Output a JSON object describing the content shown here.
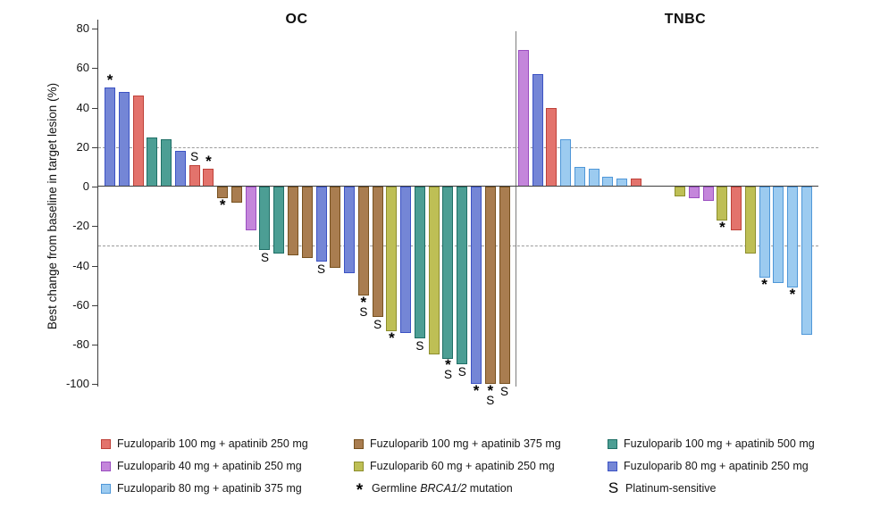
{
  "chart_data": {
    "type": "bar",
    "subtype": "waterfall",
    "ylabel": "Best change from baseline in target lesion (%)",
    "ylim": [
      -100,
      80
    ],
    "yticks": [
      80,
      60,
      40,
      20,
      0,
      -20,
      -40,
      -60,
      -80,
      -100
    ],
    "reference_lines": {
      "upper": 20,
      "lower": -30,
      "style": "dashed"
    },
    "grid": "off",
    "legend_position": "bottom",
    "groups": {
      "f100a250": {
        "label": "Fuzuloparib 100 mg + apatinib 250 mg",
        "fill": "#E3736C",
        "stroke": "#BE4139"
      },
      "f40a250": {
        "label": "Fuzuloparib 40 mg + apatinib 250 mg",
        "fill": "#C486DB",
        "stroke": "#9A4EC0"
      },
      "f80a375": {
        "label": "Fuzuloparib 80 mg + apatinib 375 mg",
        "fill": "#9CCBF0",
        "stroke": "#4F97D8"
      },
      "f100a375": {
        "label": "Fuzuloparib 100 mg + apatinib 375 mg",
        "fill": "#A97D50",
        "stroke": "#77511F"
      },
      "f60a250": {
        "label": "Fuzuloparib 60 mg + apatinib 250 mg",
        "fill": "#BEBF55",
        "stroke": "#8D8E2E"
      },
      "f100a500": {
        "label": "Fuzuloparib 100 mg + apatinib 500 mg",
        "fill": "#4C9E94",
        "stroke": "#1F6F66"
      },
      "f80a250": {
        "label": "Fuzuloparib 80 mg + apatinib 250 mg",
        "fill": "#7486D6",
        "stroke": "#3C53C4"
      }
    },
    "markers": {
      "star": {
        "symbol": "*",
        "label_parts": {
          "pre": "Germline ",
          "italic": "BRCA1/2",
          "post": " mutation"
        }
      },
      "s": {
        "symbol": "S",
        "label": "Platinum-sensitive"
      }
    },
    "panels": [
      {
        "title": "OC",
        "bars": [
          {
            "value": 50,
            "group": "f80a250",
            "marks": [
              "*"
            ]
          },
          {
            "value": 48,
            "group": "f80a250",
            "marks": []
          },
          {
            "value": 46,
            "group": "f100a250",
            "marks": []
          },
          {
            "value": 25,
            "group": "f100a500",
            "marks": []
          },
          {
            "value": 24,
            "group": "f100a500",
            "marks": []
          },
          {
            "value": 18,
            "group": "f80a250",
            "marks": []
          },
          {
            "value": 11,
            "group": "f100a250",
            "marks": [
              "S"
            ]
          },
          {
            "value": 9,
            "group": "f100a250",
            "marks": [
              "*"
            ]
          },
          {
            "value": -6,
            "group": "f100a375",
            "marks": [
              "*"
            ]
          },
          {
            "value": -8,
            "group": "f100a375",
            "marks": []
          },
          {
            "value": -22,
            "group": "f40a250",
            "marks": []
          },
          {
            "value": -32,
            "group": "f100a500",
            "marks": [
              "S"
            ]
          },
          {
            "value": -34,
            "group": "f100a500",
            "marks": []
          },
          {
            "value": -35,
            "group": "f100a375",
            "marks": []
          },
          {
            "value": -36,
            "group": "f100a375",
            "marks": []
          },
          {
            "value": -38,
            "group": "f80a250",
            "marks": [
              "S"
            ]
          },
          {
            "value": -41,
            "group": "f100a375",
            "marks": []
          },
          {
            "value": -44,
            "group": "f80a250",
            "marks": []
          },
          {
            "value": -55,
            "group": "f100a375",
            "marks": [
              "*",
              "S"
            ]
          },
          {
            "value": -66,
            "group": "f100a375",
            "marks": [
              "S"
            ]
          },
          {
            "value": -73,
            "group": "f60a250",
            "marks": [
              "*"
            ]
          },
          {
            "value": -74,
            "group": "f80a250",
            "marks": []
          },
          {
            "value": -77,
            "group": "f100a500",
            "marks": [
              "S"
            ]
          },
          {
            "value": -85,
            "group": "f60a250",
            "marks": []
          },
          {
            "value": -87,
            "group": "f100a500",
            "marks": [
              "*",
              "S"
            ]
          },
          {
            "value": -90,
            "group": "f100a500",
            "marks": [
              "S"
            ]
          },
          {
            "value": -100,
            "group": "f80a250",
            "marks": [
              "*"
            ]
          },
          {
            "value": -100,
            "group": "f100a375",
            "marks": [
              "*",
              "S"
            ]
          },
          {
            "value": -100,
            "group": "f100a375",
            "marks": [
              "S"
            ]
          }
        ]
      },
      {
        "title": "TNBC",
        "bars": [
          {
            "value": 69,
            "group": "f40a250",
            "marks": []
          },
          {
            "value": 57,
            "group": "f80a250",
            "marks": []
          },
          {
            "value": 40,
            "group": "f100a250",
            "marks": []
          },
          {
            "value": 24,
            "group": "f80a375",
            "marks": []
          },
          {
            "value": 10,
            "group": "f80a375",
            "marks": []
          },
          {
            "value": 9,
            "group": "f80a375",
            "marks": []
          },
          {
            "value": 5,
            "group": "f80a375",
            "marks": []
          },
          {
            "value": 4,
            "group": "f80a375",
            "marks": []
          },
          {
            "value": 4,
            "group": "f100a250",
            "marks": []
          },
          {
            "value": -5,
            "group": "f60a250",
            "marks": [],
            "gap_before": true
          },
          {
            "value": -6,
            "group": "f40a250",
            "marks": []
          },
          {
            "value": -7,
            "group": "f40a250",
            "marks": []
          },
          {
            "value": -17,
            "group": "f60a250",
            "marks": [
              "*"
            ]
          },
          {
            "value": -22,
            "group": "f100a250",
            "marks": []
          },
          {
            "value": -34,
            "group": "f60a250",
            "marks": []
          },
          {
            "value": -46,
            "group": "f80a375",
            "marks": [
              "*"
            ]
          },
          {
            "value": -49,
            "group": "f80a375",
            "marks": []
          },
          {
            "value": -51,
            "group": "f80a375",
            "marks": [
              "*"
            ]
          },
          {
            "value": -75,
            "group": "f80a375",
            "marks": []
          }
        ]
      }
    ],
    "legend": {
      "columns": [
        [
          "f100a250",
          "f40a250",
          "f80a375"
        ],
        [
          "f100a375",
          "f60a250",
          "star"
        ],
        [
          "f100a500",
          "f80a250",
          "s"
        ]
      ]
    }
  }
}
